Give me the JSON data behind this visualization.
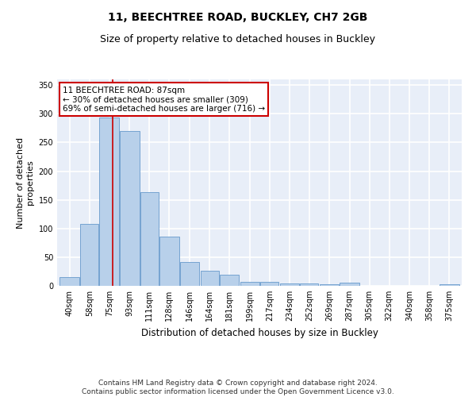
{
  "title1": "11, BEECHTREE ROAD, BUCKLEY, CH7 2GB",
  "title2": "Size of property relative to detached houses in Buckley",
  "xlabel": "Distribution of detached houses by size in Buckley",
  "ylabel": "Number of detached\nproperties",
  "bar_edges": [
    40,
    58,
    75,
    93,
    111,
    128,
    146,
    164,
    181,
    199,
    217,
    234,
    252,
    269,
    287,
    305,
    322,
    340,
    358,
    375,
    393
  ],
  "bar_values": [
    15,
    108,
    293,
    270,
    163,
    86,
    41,
    27,
    20,
    7,
    7,
    4,
    4,
    3,
    5,
    0,
    0,
    0,
    0,
    3
  ],
  "bar_color": "#b8d0ea",
  "bar_edgecolor": "#6699cc",
  "property_size": 87,
  "property_line_color": "#cc0000",
  "annotation_text": "11 BEECHTREE ROAD: 87sqm\n← 30% of detached houses are smaller (309)\n69% of semi-detached houses are larger (716) →",
  "annotation_box_color": "#ffffff",
  "annotation_box_edgecolor": "#cc0000",
  "ylim": [
    0,
    360
  ],
  "yticks": [
    0,
    50,
    100,
    150,
    200,
    250,
    300,
    350
  ],
  "bg_color": "#e8eef8",
  "grid_color": "#ffffff",
  "footer_text": "Contains HM Land Registry data © Crown copyright and database right 2024.\nContains public sector information licensed under the Open Government Licence v3.0.",
  "title1_fontsize": 10,
  "title2_fontsize": 9,
  "xlabel_fontsize": 8.5,
  "ylabel_fontsize": 8,
  "tick_fontsize": 7,
  "annotation_fontsize": 7.5,
  "footer_fontsize": 6.5
}
